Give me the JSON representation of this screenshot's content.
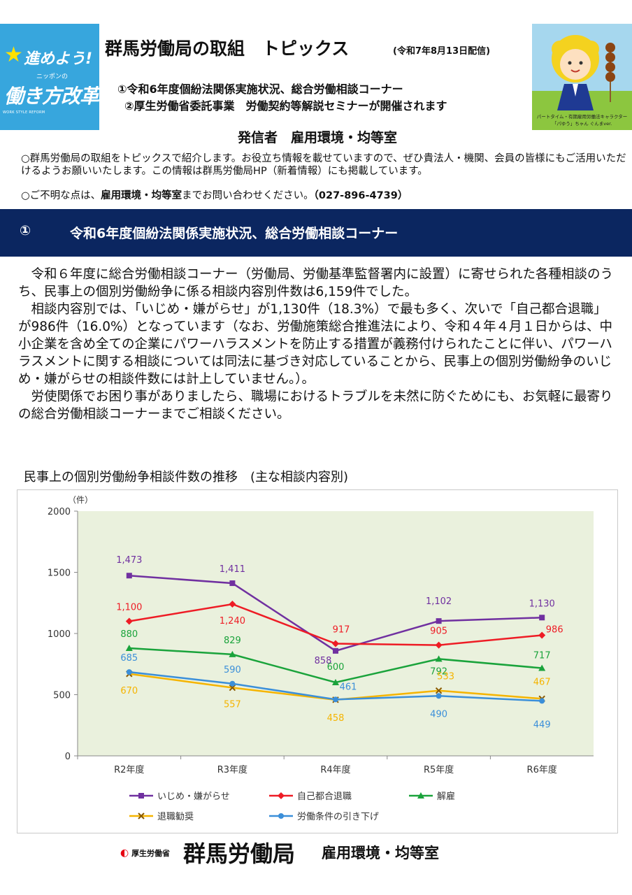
{
  "logo": {
    "line1": "進めよう!",
    "small": "ニッポンの",
    "line2": "働き方改革",
    "english": "WORK STYLE REFORM"
  },
  "header": {
    "title": "群馬労働局の取組　トピックス",
    "date": "(令和7年8月13日配信)",
    "topic1": "①令和6年度個紛法関係実施状況、総合労働相談コーナー",
    "topic2": "②厚生労働省委託事業　労働契約等解説セミナーが開催されます",
    "sender": "発信者　雇用環境・均等室"
  },
  "mascot": {
    "caption_line1": "パートタイム・有期雇用労働法キャラクター",
    "caption_line2": "「パゆう」ちゃん ぐんまver."
  },
  "intro": {
    "text": "○群馬労働局の取組をトピックスで紹介します。お役立ち情報を載せていますので、ぜひ貴法人・機関、会員の皆様にもご活用いただけるようお願いいたします。この情報は群馬労働局HP（新着情報）にも掲載しています。",
    "contact_prefix": "○ご不明な点は、",
    "contact_dept": "雇用環境・均等室",
    "contact_suffix": "までお問い合わせください。",
    "contact_phone": "（027-896-4739）"
  },
  "section": {
    "number": "①",
    "title": "令和6年度個紛法関係実施状況、総合労働相談コーナー"
  },
  "body": {
    "p1": "　令和６年度に総合労働相談コーナー（労働局、労働基準監督署内に設置）に寄せられた各種相談のうち、民事上の個別労働紛争に係る相談内容別件数は6,159件でした。",
    "p2": "　相談内容別では、「いじめ・嫌がらせ」が1,130件（18.3%）で最も多く、次いで「自己都合退職」が986件（16.0%）となっています（なお、労働施策総合推進法により、令和４年４月１日からは、中小企業を含め全ての企業にパワーハラスメントを防止する措置が義務付けられたことに伴い、パワーハラスメントに関する相談については同法に基づき対応していることから、民事上の個別労働紛争のいじめ・嫌がらせの相談件数には計上していません。）。",
    "p3": "　労使関係でお困り事がありましたら、職場におけるトラブルを未然に防ぐためにも、お気軽に最寄りの総合労働相談コーナーまでご相談ください。"
  },
  "chart_caption": "民事上の個別労働紛争相談件数の推移　(主な相談内容別)",
  "chart_data": {
    "type": "line",
    "title": "民事上の個別労働紛争相談件数の推移　(主な相談内容別)",
    "unit_label": "（件）",
    "categories": [
      "R2年度",
      "R3年度",
      "R4年度",
      "R5年度",
      "R6年度"
    ],
    "ylim": [
      0,
      2000
    ],
    "yticks": [
      0,
      500,
      1000,
      1500,
      2000
    ],
    "grid": false,
    "legend_position": "bottom",
    "series": [
      {
        "name": "いじめ・嫌がらせ",
        "color": "#7030a0",
        "marker": "square",
        "values": [
          1473,
          1411,
          858,
          1102,
          1130
        ],
        "labels": [
          "1,473",
          "1,411",
          "858",
          "1,102",
          "1,130"
        ]
      },
      {
        "name": "自己都合退職",
        "color": "#ee1c25",
        "marker": "diamond",
        "values": [
          1100,
          1240,
          917,
          905,
          986
        ],
        "labels": [
          "1,100",
          "1,240",
          "917",
          "905",
          "986"
        ]
      },
      {
        "name": "解雇",
        "color": "#1aa33b",
        "marker": "triangle",
        "values": [
          880,
          829,
          600,
          792,
          717
        ],
        "labels": [
          "880",
          "829",
          "600",
          "792",
          "717"
        ]
      },
      {
        "name": "退職勧奨",
        "color": "#f5b400",
        "marker": "x",
        "values": [
          670,
          557,
          458,
          533,
          467
        ],
        "labels": [
          "670",
          "557",
          "458",
          "533",
          "467"
        ]
      },
      {
        "name": "労働条件の引き下げ",
        "color": "#3b8fd9",
        "marker": "circle",
        "values": [
          685,
          590,
          461,
          490,
          449
        ],
        "labels": [
          "685",
          "590",
          "461",
          "490",
          "449"
        ]
      }
    ]
  },
  "footer": {
    "ministry": "厚生労働省",
    "org": "群馬労働局",
    "dept": "雇用環境・均等室"
  }
}
